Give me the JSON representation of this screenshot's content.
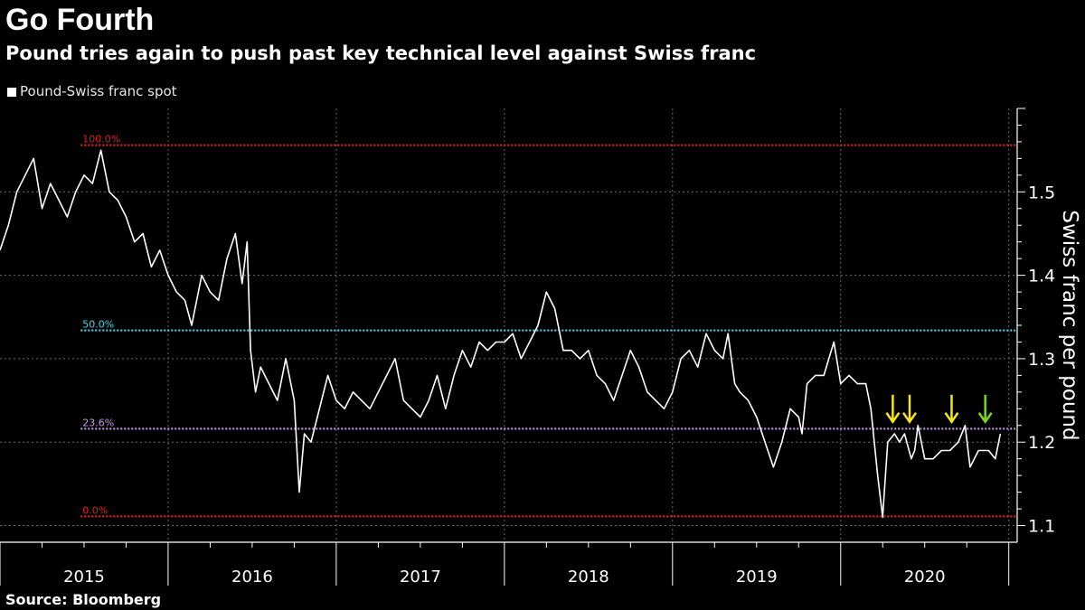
{
  "title": "Go Fourth",
  "subtitle": "Pound tries again to push past key technical level against Swiss franc",
  "legend": {
    "label": "Pound-Swiss franc spot",
    "color": "#ffffff"
  },
  "source": "Source: Bloomberg",
  "chart_data": {
    "type": "line",
    "title": "Go Fourth",
    "subtitle": "Pound tries again to push past key technical level against Swiss franc",
    "ylabel": "Swiss franc per pound",
    "ylim": [
      1.08,
      1.6
    ],
    "yticks": [
      1.1,
      1.2,
      1.3,
      1.4,
      1.5
    ],
    "xlim": [
      2015.0,
      2021.05
    ],
    "year_labels": [
      "2015",
      "2016",
      "2017",
      "2018",
      "2019",
      "2020"
    ],
    "grid": true,
    "legend_position": "top-left",
    "series": [
      {
        "name": "Pound-Swiss franc spot",
        "color": "#ffffff",
        "points": [
          [
            2015.0,
            1.43
          ],
          [
            2015.05,
            1.46
          ],
          [
            2015.1,
            1.5
          ],
          [
            2015.15,
            1.52
          ],
          [
            2015.2,
            1.54
          ],
          [
            2015.25,
            1.48
          ],
          [
            2015.3,
            1.51
          ],
          [
            2015.35,
            1.49
          ],
          [
            2015.4,
            1.47
          ],
          [
            2015.45,
            1.5
          ],
          [
            2015.5,
            1.52
          ],
          [
            2015.55,
            1.51
          ],
          [
            2015.6,
            1.55
          ],
          [
            2015.65,
            1.5
          ],
          [
            2015.7,
            1.49
          ],
          [
            2015.75,
            1.47
          ],
          [
            2015.8,
            1.44
          ],
          [
            2015.85,
            1.45
          ],
          [
            2015.9,
            1.41
          ],
          [
            2015.95,
            1.43
          ],
          [
            2016.0,
            1.4
          ],
          [
            2016.05,
            1.38
          ],
          [
            2016.1,
            1.37
          ],
          [
            2016.14,
            1.34
          ],
          [
            2016.2,
            1.4
          ],
          [
            2016.25,
            1.38
          ],
          [
            2016.3,
            1.37
          ],
          [
            2016.35,
            1.42
          ],
          [
            2016.4,
            1.45
          ],
          [
            2016.44,
            1.39
          ],
          [
            2016.47,
            1.44
          ],
          [
            2016.49,
            1.31
          ],
          [
            2016.52,
            1.26
          ],
          [
            2016.55,
            1.29
          ],
          [
            2016.6,
            1.27
          ],
          [
            2016.65,
            1.25
          ],
          [
            2016.7,
            1.3
          ],
          [
            2016.75,
            1.25
          ],
          [
            2016.78,
            1.14
          ],
          [
            2016.81,
            1.21
          ],
          [
            2016.85,
            1.2
          ],
          [
            2016.9,
            1.24
          ],
          [
            2016.95,
            1.28
          ],
          [
            2017.0,
            1.25
          ],
          [
            2017.05,
            1.24
          ],
          [
            2017.1,
            1.26
          ],
          [
            2017.15,
            1.25
          ],
          [
            2017.2,
            1.24
          ],
          [
            2017.25,
            1.26
          ],
          [
            2017.3,
            1.28
          ],
          [
            2017.35,
            1.3
          ],
          [
            2017.4,
            1.25
          ],
          [
            2017.45,
            1.24
          ],
          [
            2017.5,
            1.23
          ],
          [
            2017.55,
            1.25
          ],
          [
            2017.6,
            1.28
          ],
          [
            2017.65,
            1.24
          ],
          [
            2017.7,
            1.28
          ],
          [
            2017.75,
            1.31
          ],
          [
            2017.8,
            1.29
          ],
          [
            2017.85,
            1.32
          ],
          [
            2017.9,
            1.31
          ],
          [
            2017.95,
            1.32
          ],
          [
            2018.0,
            1.32
          ],
          [
            2018.05,
            1.33
          ],
          [
            2018.1,
            1.3
          ],
          [
            2018.15,
            1.32
          ],
          [
            2018.2,
            1.34
          ],
          [
            2018.25,
            1.38
          ],
          [
            2018.3,
            1.36
          ],
          [
            2018.35,
            1.31
          ],
          [
            2018.4,
            1.31
          ],
          [
            2018.45,
            1.3
          ],
          [
            2018.5,
            1.31
          ],
          [
            2018.55,
            1.28
          ],
          [
            2018.6,
            1.27
          ],
          [
            2018.65,
            1.25
          ],
          [
            2018.7,
            1.28
          ],
          [
            2018.75,
            1.31
          ],
          [
            2018.8,
            1.29
          ],
          [
            2018.85,
            1.26
          ],
          [
            2018.9,
            1.25
          ],
          [
            2018.95,
            1.24
          ],
          [
            2019.0,
            1.26
          ],
          [
            2019.05,
            1.3
          ],
          [
            2019.1,
            1.31
          ],
          [
            2019.15,
            1.29
          ],
          [
            2019.2,
            1.33
          ],
          [
            2019.25,
            1.31
          ],
          [
            2019.3,
            1.3
          ],
          [
            2019.33,
            1.33
          ],
          [
            2019.37,
            1.27
          ],
          [
            2019.4,
            1.26
          ],
          [
            2019.45,
            1.25
          ],
          [
            2019.5,
            1.23
          ],
          [
            2019.55,
            1.2
          ],
          [
            2019.6,
            1.17
          ],
          [
            2019.65,
            1.2
          ],
          [
            2019.7,
            1.24
          ],
          [
            2019.75,
            1.23
          ],
          [
            2019.77,
            1.21
          ],
          [
            2019.8,
            1.27
          ],
          [
            2019.85,
            1.28
          ],
          [
            2019.9,
            1.28
          ],
          [
            2019.93,
            1.3
          ],
          [
            2019.96,
            1.32
          ],
          [
            2020.0,
            1.27
          ],
          [
            2020.05,
            1.28
          ],
          [
            2020.1,
            1.27
          ],
          [
            2020.15,
            1.27
          ],
          [
            2020.18,
            1.24
          ],
          [
            2020.22,
            1.16
          ],
          [
            2020.25,
            1.11
          ],
          [
            2020.28,
            1.2
          ],
          [
            2020.32,
            1.21
          ],
          [
            2020.35,
            1.2
          ],
          [
            2020.38,
            1.21
          ],
          [
            2020.42,
            1.18
          ],
          [
            2020.44,
            1.19
          ],
          [
            2020.46,
            1.22
          ],
          [
            2020.5,
            1.18
          ],
          [
            2020.55,
            1.18
          ],
          [
            2020.6,
            1.19
          ],
          [
            2020.65,
            1.19
          ],
          [
            2020.7,
            1.2
          ],
          [
            2020.74,
            1.22
          ],
          [
            2020.77,
            1.17
          ],
          [
            2020.82,
            1.19
          ],
          [
            2020.88,
            1.19
          ],
          [
            2020.92,
            1.18
          ],
          [
            2020.95,
            1.21
          ]
        ]
      }
    ],
    "retracement_levels": [
      {
        "label": "100.0%",
        "value": 1.556,
        "color": "#e01e1e"
      },
      {
        "label": "50.0%",
        "value": 1.334,
        "color": "#3ed8f0"
      },
      {
        "label": "23.6%",
        "value": 1.216,
        "color": "#c79be8"
      },
      {
        "label": "0.0%",
        "value": 1.111,
        "color": "#e01e1e"
      }
    ],
    "annotations": [
      {
        "type": "arrow-down",
        "x": 2020.31,
        "y": 1.22,
        "color": "#f5e617"
      },
      {
        "type": "arrow-down",
        "x": 2020.41,
        "y": 1.22,
        "color": "#f5e617"
      },
      {
        "type": "arrow-down",
        "x": 2020.66,
        "y": 1.22,
        "color": "#f5e617"
      },
      {
        "type": "arrow-down",
        "x": 2020.86,
        "y": 1.22,
        "color": "#7ed321"
      }
    ]
  }
}
